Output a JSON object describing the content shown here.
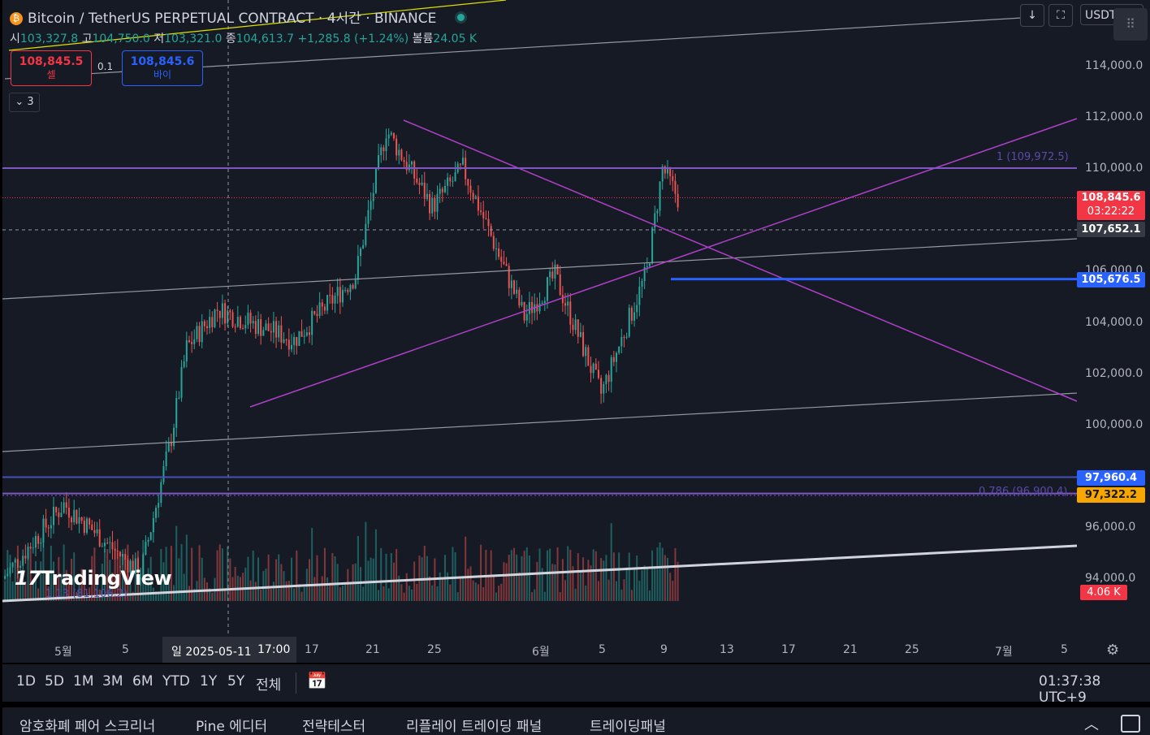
{
  "header": {
    "symbol_title": "Bitcoin / TetherUS PERPETUAL CONTRACT · 4시간 · BINANCE",
    "ohlc": {
      "open_label": "시",
      "open": "103,327.8",
      "high_label": "고",
      "high": "104,750.0",
      "low_label": "저",
      "low": "103,321.0",
      "close_label": "종",
      "close": "104,613.7",
      "change": "+1,285.8 (+1.24%)",
      "volume_label": "볼륨",
      "volume": "24.05 K"
    }
  },
  "trade": {
    "sell_price": "108,845.5",
    "sell_label": "셀",
    "spread": "0.1",
    "buy_price": "108,845.6",
    "buy_label": "바이"
  },
  "indicators_collapse": "3",
  "top_right": {
    "currency": "USDT"
  },
  "price_axis": {
    "labels": [
      "114,000.0",
      "112,000.0",
      "110,000.0",
      "106,000.0",
      "104,000.0",
      "102,000.0",
      "100,000.0",
      "96,000.0",
      "94,000.0"
    ],
    "tags": {
      "last_price": "108,845.6",
      "countdown": "03:22:22",
      "crosshair": "107,652.1",
      "blue_line": "105,676.5",
      "blue_level": "97,960.4",
      "orange_level": "97,322.2",
      "volume": "4.06 K"
    }
  },
  "fib_labels": {
    "fib1": "1 (109,972.5)",
    "fib786": "0.786 (96,900.4)",
    "fib113": "1.13 (81,106.2)"
  },
  "branding": "TradingView",
  "time_axis": {
    "labels": [
      "5월",
      "5",
      "17",
      "21",
      "25",
      "6월",
      "5",
      "9",
      "13",
      "17",
      "21",
      "25",
      "7월",
      "5"
    ],
    "selected": "일 2025-05-11",
    "selected_time": "17:00"
  },
  "range_buttons": [
    "1D",
    "5D",
    "1M",
    "3M",
    "6M",
    "YTD",
    "1Y",
    "5Y",
    "전체"
  ],
  "clock": "01:37:38 UTC+9",
  "bottom_tabs": [
    "암호화폐 페어 스크리너",
    "Pine 에디터",
    "전략테스터",
    "리플레이 트레이딩 패널",
    "트레이딩패널"
  ],
  "chart_data": {
    "type": "candlestick",
    "symbol": "BTCUSDT.P",
    "interval": "4h",
    "ylim": [
      93000,
      115000
    ],
    "x_labels": [
      "5월",
      "5",
      "17",
      "21",
      "25",
      "6월",
      "5",
      "9",
      "13",
      "17",
      "21",
      "25",
      "7월",
      "5"
    ],
    "horizontal_levels": [
      110000,
      105676.5,
      97960.4,
      97322.2
    ],
    "approx_price_path": [
      {
        "date": "2025-04-27",
        "price": 94000
      },
      {
        "date": "2025-05-01",
        "price": 96900
      },
      {
        "date": "2025-05-06",
        "price": 94200
      },
      {
        "date": "2025-05-08",
        "price": 99500
      },
      {
        "date": "2025-05-09",
        "price": 103000
      },
      {
        "date": "2025-05-11",
        "price": 104500
      },
      {
        "date": "2025-05-16",
        "price": 103300
      },
      {
        "date": "2025-05-20",
        "price": 105800
      },
      {
        "date": "2025-05-22",
        "price": 111500
      },
      {
        "date": "2025-05-25",
        "price": 108500
      },
      {
        "date": "2025-05-27",
        "price": 110000
      },
      {
        "date": "2025-05-31",
        "price": 104200
      },
      {
        "date": "2025-06-02",
        "price": 105800
      },
      {
        "date": "2025-06-05",
        "price": 101200
      },
      {
        "date": "2025-06-08",
        "price": 106000
      },
      {
        "date": "2025-06-09",
        "price": 110000
      },
      {
        "date": "2025-06-10",
        "price": 108845.6
      }
    ],
    "last_price": 108845.6,
    "last_volume": "4.06 K"
  }
}
